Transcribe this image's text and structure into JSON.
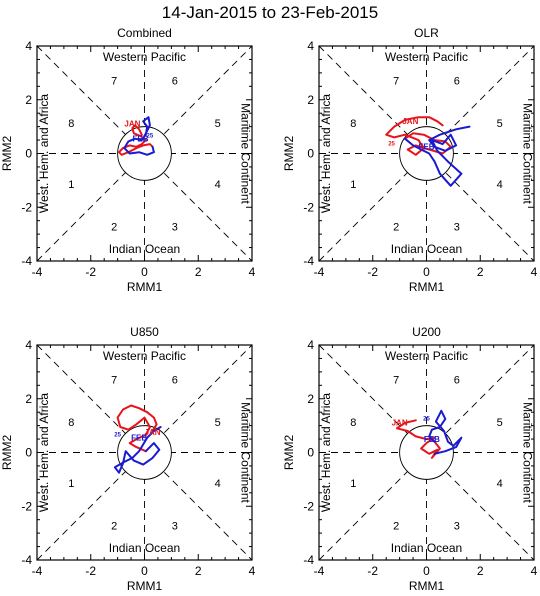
{
  "figure": {
    "title": "14-Jan-2015 to 23-Feb-2015"
  },
  "colors": {
    "jan": "#e8141b",
    "feb": "#1a1ad0",
    "axis": "#000000"
  },
  "chart_data": [
    {
      "type": "line",
      "title": "Combined",
      "xlabel": "RMM1",
      "ylabel": "RMM2",
      "xlim": [
        -4,
        4
      ],
      "ylim": [
        -4,
        4
      ],
      "ticks": [
        "-4",
        "-2",
        "0",
        "2",
        "4"
      ],
      "phase_numbers": [
        "1",
        "2",
        "3",
        "4",
        "5",
        "6",
        "7",
        "8"
      ],
      "regions": {
        "top": "Western Pacific",
        "bottom": "Indian Ocean",
        "left": "West. Hem. and Africa",
        "right": "Maritime Continent"
      },
      "series": [
        {
          "name": "JAN",
          "color": "#e8141b",
          "x": [
            -0.1,
            -0.2,
            -0.35,
            -0.45,
            -0.4,
            -0.15,
            0.05,
            -0.1,
            -0.3,
            -0.55,
            -0.8,
            -0.95,
            -0.85,
            -0.6,
            -0.3,
            -0.05,
            0.2,
            0.3
          ],
          "y": [
            0.7,
            0.9,
            1.05,
            0.95,
            0.75,
            0.65,
            0.5,
            0.35,
            0.25,
            0.3,
            0.2,
            0.05,
            -0.05,
            0.05,
            0.2,
            0.3,
            0.35,
            0.25
          ]
        },
        {
          "name": "FEB",
          "color": "#1a1ad0",
          "x": [
            0.3,
            0.35,
            0.1,
            -0.2,
            -0.55,
            -0.75,
            -0.6,
            -0.35,
            -0.1,
            0.05,
            0.1,
            -0.05,
            0.15,
            0.2,
            0.1,
            0.0
          ],
          "y": [
            0.25,
            0.05,
            -0.05,
            0.05,
            0.0,
            0.2,
            0.45,
            0.55,
            0.5,
            0.7,
            1.0,
            1.2,
            1.35,
            1.05,
            0.85,
            0.65
          ]
        }
      ],
      "labels": [
        {
          "text": "JAN",
          "color": "#e8141b",
          "x": -0.45,
          "y": 1.0
        },
        {
          "text": "FEB",
          "color": "#1a1ad0",
          "x": -0.15,
          "y": 0.45
        },
        {
          "text": "25",
          "color": "#1a1ad0",
          "x": 0.2,
          "y": 0.6
        }
      ]
    },
    {
      "type": "line",
      "title": "OLR",
      "xlabel": "RMM1",
      "ylabel": "RMM2",
      "xlim": [
        -4,
        4
      ],
      "ylim": [
        -4,
        4
      ],
      "ticks": [
        "-4",
        "-2",
        "0",
        "2",
        "4"
      ],
      "phase_numbers": [
        "1",
        "2",
        "3",
        "4",
        "5",
        "6",
        "7",
        "8"
      ],
      "regions": {
        "top": "Western Pacific",
        "bottom": "Indian Ocean",
        "left": "West. Hem. and Africa",
        "right": "Maritime Continent"
      },
      "series": [
        {
          "name": "JAN",
          "color": "#e8141b",
          "x": [
            0.6,
            0.4,
            0.1,
            -0.3,
            -0.8,
            -1.2,
            -1.5,
            -1.2,
            -0.8,
            -0.3,
            -0.1,
            -0.4,
            -0.7,
            -0.4,
            0.1,
            0.6,
            0.9,
            0.7,
            0.3,
            -0.1,
            -0.5,
            -0.8
          ],
          "y": [
            1.05,
            1.2,
            1.35,
            1.35,
            1.25,
            1.0,
            0.7,
            0.6,
            0.7,
            0.5,
            0.2,
            -0.05,
            0.15,
            0.3,
            0.15,
            0.0,
            0.25,
            0.45,
            0.5,
            0.7,
            0.75,
            0.55
          ]
        },
        {
          "name": "FEB",
          "color": "#1a1ad0",
          "x": [
            -0.8,
            -0.5,
            -0.2,
            0.1,
            0.3,
            0.5,
            0.9,
            1.3,
            0.8,
            0.4,
            0.2,
            0.6,
            0.9,
            1.1,
            0.7,
            0.3,
            0.1,
            0.5,
            1.1,
            1.6
          ],
          "y": [
            0.55,
            0.3,
            0.15,
            0.0,
            -0.3,
            -0.75,
            -1.2,
            -0.75,
            -0.3,
            0.1,
            0.5,
            0.35,
            0.7,
            0.3,
            0.1,
            0.25,
            0.5,
            0.7,
            0.9,
            1.0
          ]
        }
      ],
      "labels": [
        {
          "text": "JAN",
          "color": "#e8141b",
          "x": -0.6,
          "y": 1.1
        },
        {
          "text": "FEB",
          "color": "#1a1ad0",
          "x": 0.0,
          "y": 0.15
        },
        {
          "text": "25",
          "color": "#e8141b",
          "x": -1.3,
          "y": 0.3
        }
      ]
    },
    {
      "type": "line",
      "title": "U850",
      "xlabel": "RMM1",
      "ylabel": "RMM2",
      "xlim": [
        -4,
        4
      ],
      "ylim": [
        -4,
        4
      ],
      "ticks": [
        "-4",
        "-2",
        "0",
        "2",
        "4"
      ],
      "phase_numbers": [
        "1",
        "2",
        "3",
        "4",
        "5",
        "6",
        "7",
        "8"
      ],
      "regions": {
        "top": "Western Pacific",
        "bottom": "Indian Ocean",
        "left": "West. Hem. and Africa",
        "right": "Maritime Continent"
      },
      "series": [
        {
          "name": "JAN",
          "color": "#e8141b",
          "x": [
            0.3,
            0.45,
            0.35,
            0.1,
            -0.2,
            -0.5,
            -0.8,
            -1.0,
            -0.9,
            -0.6,
            -0.3,
            0.0,
            0.2,
            0.05,
            -0.3,
            -0.55,
            -0.3,
            0.05
          ],
          "y": [
            0.8,
            1.05,
            1.3,
            1.5,
            1.65,
            1.75,
            1.6,
            1.3,
            0.95,
            0.85,
            1.05,
            1.3,
            0.95,
            0.65,
            0.5,
            0.35,
            0.2,
            0.05
          ]
        },
        {
          "name": "FEB",
          "color": "#1a1ad0",
          "x": [
            0.05,
            0.35,
            0.55,
            0.3,
            -0.05,
            -0.4,
            -0.7,
            -0.8,
            -0.95,
            -1.1,
            -0.75,
            -0.45,
            -0.2,
            -0.05,
            0.1,
            0.35,
            0.6
          ],
          "y": [
            0.05,
            0.35,
            0.1,
            -0.2,
            -0.45,
            -0.3,
            0.05,
            -0.4,
            -0.75,
            -0.55,
            -0.35,
            -0.2,
            0.05,
            0.3,
            0.55,
            0.8,
            0.95
          ]
        }
      ],
      "labels": [
        {
          "text": "JAN",
          "color": "#e8141b",
          "x": 0.3,
          "y": 0.65
        },
        {
          "text": "FEB",
          "color": "#1a1ad0",
          "x": -0.2,
          "y": 0.45
        },
        {
          "text": "25",
          "color": "#1a1ad0",
          "x": -1.0,
          "y": 0.6
        }
      ]
    },
    {
      "type": "line",
      "title": "U200",
      "xlabel": "RMM1",
      "ylabel": "RMM2",
      "xlim": [
        -4,
        4
      ],
      "ylim": [
        -4,
        4
      ],
      "ticks": [
        "-4",
        "-2",
        "0",
        "2",
        "4"
      ],
      "phase_numbers": [
        "1",
        "2",
        "3",
        "4",
        "5",
        "6",
        "7",
        "8"
      ],
      "regions": {
        "top": "Western Pacific",
        "bottom": "Indian Ocean",
        "left": "West. Hem. and Africa",
        "right": "Maritime Continent"
      },
      "series": [
        {
          "name": "JAN",
          "color": "#e8141b",
          "x": [
            -0.4,
            -0.8,
            -1.1,
            -0.7,
            -0.4,
            0.0,
            0.3,
            0.0,
            -0.2,
            0.1,
            0.4,
            0.2,
            0.5,
            0.3
          ],
          "y": [
            1.2,
            1.1,
            0.9,
            0.8,
            0.6,
            0.5,
            0.55,
            0.35,
            0.15,
            -0.05,
            0.1,
            -0.2,
            0.15,
            0.4
          ]
        },
        {
          "name": "FEB",
          "color": "#1a1ad0",
          "x": [
            0.3,
            0.1,
            0.2,
            0.5,
            0.7,
            0.55,
            0.35,
            0.65,
            0.8,
            1.0,
            1.3,
            1.1,
            0.7,
            0.3
          ],
          "y": [
            0.4,
            0.6,
            0.85,
            0.95,
            1.25,
            1.55,
            1.15,
            0.8,
            0.4,
            0.25,
            0.55,
            0.2,
            0.05,
            -0.05
          ]
        }
      ],
      "labels": [
        {
          "text": "JAN",
          "color": "#e8141b",
          "x": -1.0,
          "y": 1.0
        },
        {
          "text": "FEB",
          "color": "#1a1ad0",
          "x": 0.2,
          "y": 0.4
        },
        {
          "text": "25",
          "color": "#1a1ad0",
          "x": 0.0,
          "y": 1.2
        }
      ]
    }
  ]
}
